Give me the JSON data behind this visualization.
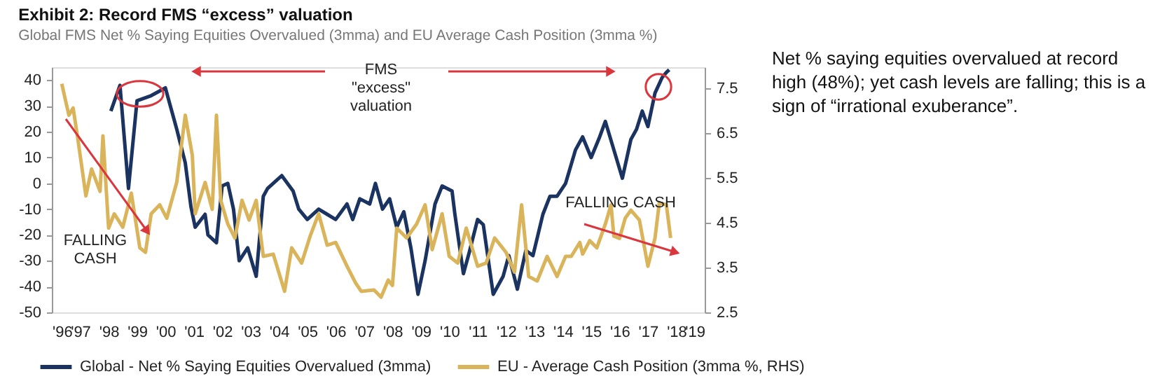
{
  "chart_data": {
    "type": "line",
    "title": "Exhibit 2: Record FMS “excess” valuation",
    "subtitle": "Global FMS Net % Saying Equities Overvalued (3mma) and EU Average Cash Position (3mma %)",
    "xlim": [
      1996,
      2019
    ],
    "xticks": [
      {
        "value": 1996,
        "label": "'96"
      },
      {
        "value": 1997,
        "label": "'97"
      },
      {
        "value": 1998,
        "label": "'98"
      },
      {
        "value": 1999,
        "label": "'99"
      },
      {
        "value": 2000,
        "label": "'00"
      },
      {
        "value": 2001,
        "label": "'01"
      },
      {
        "value": 2002,
        "label": "'02"
      },
      {
        "value": 2003,
        "label": "'03"
      },
      {
        "value": 2004,
        "label": "'04"
      },
      {
        "value": 2005,
        "label": "'05"
      },
      {
        "value": 2006,
        "label": "'06"
      },
      {
        "value": 2007,
        "label": "'07"
      },
      {
        "value": 2008,
        "label": "'08"
      },
      {
        "value": 2009,
        "label": "'09"
      },
      {
        "value": 2010,
        "label": "'10"
      },
      {
        "value": 2011,
        "label": "'11"
      },
      {
        "value": 2012,
        "label": "'12"
      },
      {
        "value": 2013,
        "label": "'13"
      },
      {
        "value": 2014,
        "label": "'14"
      },
      {
        "value": 2015,
        "label": "'15"
      },
      {
        "value": 2016,
        "label": "'16"
      },
      {
        "value": 2017,
        "label": "'17"
      },
      {
        "value": 2018,
        "label": "'18"
      },
      {
        "value": 2019,
        "label": "'19"
      }
    ],
    "ylim": [
      -50,
      45
    ],
    "yticks": [
      -50,
      -40,
      -30,
      -20,
      -10,
      0,
      10,
      20,
      30,
      40
    ],
    "y2lim": [
      2.5,
      7.97
    ],
    "y2ticks": [
      2.5,
      3.5,
      4.5,
      5.5,
      6.5,
      7.5
    ],
    "legend": "bottom",
    "marker": "none",
    "line_style": "solid",
    "series": [
      {
        "name": "Global - Net % Saying Equities Overvalued (3mma)",
        "color": "#1b3360",
        "axis": "y",
        "x": [
          1998.08,
          1998.4,
          1998.7,
          1999.0,
          1999.5,
          2000.0,
          2000.4,
          2000.7,
          2000.9,
          2001.05,
          2001.4,
          2001.5,
          2001.8,
          2002.0,
          2002.2,
          2002.4,
          2002.6,
          2002.9,
          2003.2,
          2003.45,
          2003.6,
          2004.1,
          2004.5,
          2004.7,
          2005.0,
          2005.4,
          2005.7,
          2006.0,
          2006.4,
          2006.6,
          2006.85,
          2007.2,
          2007.4,
          2007.65,
          2007.9,
          2008.15,
          2008.4,
          2008.65,
          2008.9,
          2009.15,
          2009.5,
          2009.75,
          2010.1,
          2010.2,
          2010.5,
          2010.7,
          2011.0,
          2011.2,
          2011.55,
          2011.9,
          2012.1,
          2012.4,
          2012.7,
          2012.95,
          2013.3,
          2013.55,
          2013.8,
          2014.1,
          2014.45,
          2014.7,
          2015.0,
          2015.3,
          2015.5,
          2015.8,
          2016.1,
          2016.4,
          2016.6,
          2016.8,
          2017.0,
          2017.25,
          2017.5,
          2017.65,
          2017.75
        ],
        "values": [
          28,
          38,
          -2,
          32,
          34,
          37,
          21,
          8,
          -9,
          -17,
          -12,
          -20,
          -23,
          -1,
          0,
          -10,
          -30,
          -25,
          -36,
          -5,
          -2,
          3,
          -3,
          -10,
          -14,
          -10,
          -12,
          -14,
          -8,
          -14,
          -6,
          -8,
          0,
          -10,
          -6,
          -17,
          -11,
          -25,
          -43,
          -30,
          -8,
          -1,
          -3,
          -12,
          -35,
          -27,
          -14,
          -16,
          -43,
          -36,
          -28,
          -41,
          -26,
          -28,
          -12,
          -5,
          -5,
          0,
          13,
          18,
          10,
          18,
          24,
          13,
          2,
          17,
          21,
          28,
          22,
          35,
          41,
          43,
          44
        ]
      },
      {
        "name": "EU - Average Cash Position (3mma %, RHS)",
        "color": "#d9b45a",
        "axis": "y2",
        "x": [
          1996.35,
          1996.6,
          1996.75,
          1996.9,
          1997.2,
          1997.4,
          1997.7,
          1997.8,
          1998.0,
          1998.2,
          1998.5,
          1998.8,
          1999.1,
          1999.3,
          1999.5,
          1999.8,
          2000.05,
          2000.4,
          2000.7,
          2000.95,
          2001.05,
          2001.4,
          2001.65,
          2001.8,
          2001.95,
          2002.2,
          2002.45,
          2002.7,
          2002.95,
          2003.2,
          2003.45,
          2003.8,
          2004.2,
          2004.45,
          2004.8,
          2005.1,
          2005.4,
          2005.7,
          2006.0,
          2006.4,
          2006.7,
          2006.9,
          2007.35,
          2007.6,
          2007.85,
          2008.0,
          2008.15,
          2008.5,
          2008.85,
          2009.15,
          2009.4,
          2009.75,
          2010.0,
          2010.3,
          2010.6,
          2011.0,
          2011.3,
          2011.6,
          2012.0,
          2012.3,
          2012.55,
          2012.8,
          2013.1,
          2013.45,
          2013.8,
          2014.1,
          2014.3,
          2014.6,
          2014.7,
          2014.95,
          2015.2,
          2015.5,
          2015.7,
          2015.8,
          2016.0,
          2016.2,
          2016.4,
          2016.7,
          2017.0,
          2017.25,
          2017.4,
          2017.65,
          2017.8
        ],
        "values": [
          7.6,
          6.9,
          7.06,
          6.44,
          5.1,
          5.7,
          5.2,
          6.44,
          4.38,
          4.7,
          4.4,
          5.16,
          3.94,
          3.84,
          4.7,
          4.9,
          4.6,
          5.4,
          6.9,
          6.0,
          4.7,
          5.4,
          4.8,
          6.9,
          5.0,
          4.47,
          4.16,
          5.0,
          4.56,
          5.0,
          3.75,
          3.8,
          2.97,
          3.94,
          3.6,
          4.2,
          4.7,
          4.0,
          4.06,
          3.53,
          3.16,
          2.97,
          3.0,
          2.84,
          3.22,
          3.1,
          4.38,
          4.16,
          4.47,
          4.9,
          3.9,
          4.7,
          3.75,
          3.6,
          4.38,
          3.53,
          3.6,
          4.16,
          3.84,
          3.4,
          4.9,
          3.3,
          3.2,
          3.75,
          3.3,
          3.75,
          3.75,
          4.06,
          3.8,
          4.1,
          3.94,
          4.47,
          4.9,
          4.2,
          4.15,
          4.6,
          4.78,
          4.56,
          3.53,
          4.16,
          4.94,
          4.9,
          4.16
        ]
      }
    ],
    "annotations": [
      "FMS \"excess\" valuation",
      "FALLING CASH",
      "FALLING CASH",
      "Net % saying equities overvalued at record\nhigh (48%); yet cash levels are falling; this is a\nsign of “irrational exuberance”."
    ]
  }
}
